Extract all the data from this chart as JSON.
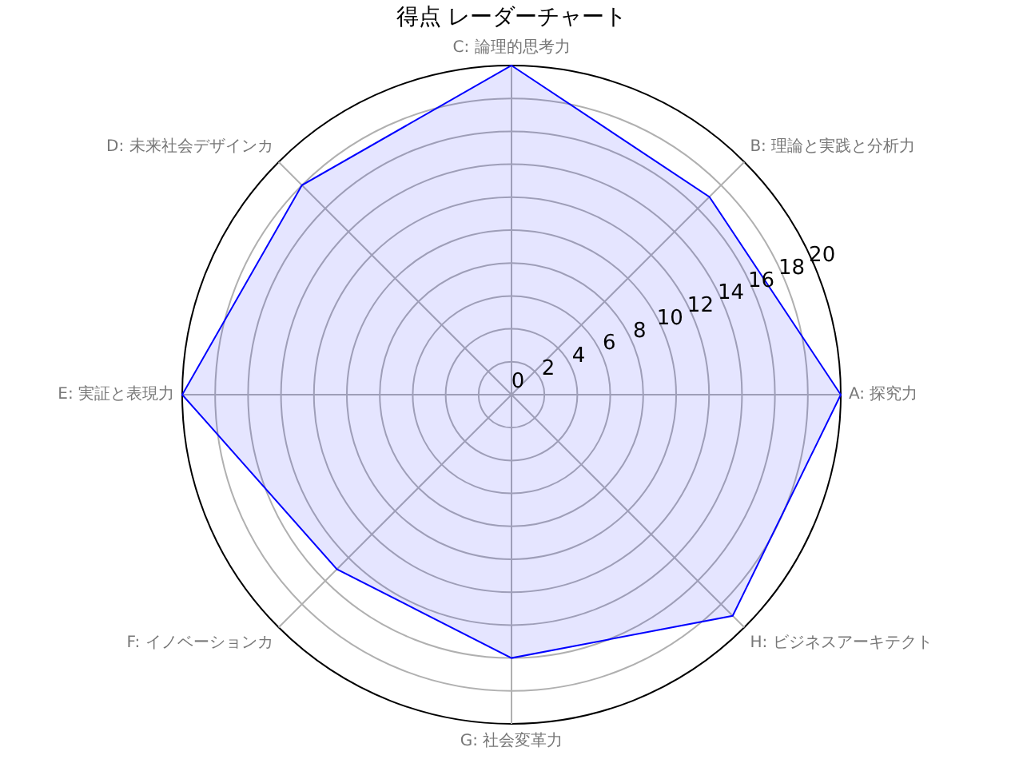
{
  "chart_data": {
    "type": "radar",
    "title": "得点 レーダーチャート",
    "categories": [
      "C: 論理的思考力",
      "B: 理論と実践と分析力",
      "A: 探究力",
      "H: ビジネスアーキテクト",
      "G: 社会変革力",
      "F: イノベーションカ",
      "E: 実証と表現力",
      "D: 未来社会デザインカ"
    ],
    "series": [
      {
        "color": "#0000ff",
        "values": [
          20,
          17,
          20,
          19,
          16,
          15,
          20,
          18
        ]
      }
    ],
    "ylim": [
      0,
      20
    ],
    "yticks": [
      0,
      2,
      4,
      6,
      8,
      10,
      12,
      14,
      16,
      18,
      20
    ],
    "grid": true,
    "legend": false,
    "marker": "none"
  }
}
